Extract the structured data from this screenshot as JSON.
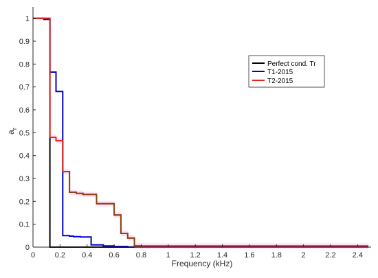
{
  "chart_data": {
    "type": "line",
    "title": "",
    "xlabel": "Frequency (kHz)",
    "ylabel_main": "a",
    "ylabel_sub": "r",
    "xlim": [
      0,
      2.5
    ],
    "ylim": [
      0,
      1.05
    ],
    "x_ticks": [
      "0",
      "0.2",
      "0.4",
      "0.6",
      "0.8",
      "1",
      "1.2",
      "1.4",
      "1.6",
      "1.8",
      "2",
      "2.2",
      "2.4"
    ],
    "x_tick_values": [
      0,
      0.2,
      0.4,
      0.6,
      0.8,
      1.0,
      1.2,
      1.4,
      1.6,
      1.8,
      2.0,
      2.2,
      2.4
    ],
    "y_ticks": [
      "0",
      "0.1",
      "0.2",
      "0.3",
      "0.4",
      "0.5",
      "0.6",
      "0.7",
      "0.8",
      "0.9",
      "1"
    ],
    "y_tick_values": [
      0,
      0.1,
      0.2,
      0.3,
      0.4,
      0.5,
      0.6,
      0.7,
      0.8,
      0.9,
      1.0
    ],
    "grid": false,
    "legend_position": "top-right",
    "series": [
      {
        "name": "Perfect cond. Tr",
        "color": "#000000",
        "x": [
          0,
          0.125,
          0.125,
          0.75
        ],
        "y": [
          1.0,
          1.0,
          0.0,
          0.0
        ]
      },
      {
        "name": "T1-2015",
        "color": "#0000cc",
        "x": [
          0,
          0.08,
          0.08,
          0.125,
          0.125,
          0.17,
          0.17,
          0.22,
          0.22,
          0.27,
          0.27,
          0.3,
          0.3,
          0.35,
          0.35,
          0.43,
          0.43,
          0.52,
          0.52,
          0.6,
          0.6,
          0.7,
          0.7,
          2.48
        ],
        "y": [
          1.0,
          1.0,
          0.995,
          0.995,
          0.765,
          0.765,
          0.68,
          0.68,
          0.05,
          0.05,
          0.048,
          0.048,
          0.046,
          0.046,
          0.044,
          0.044,
          0.01,
          0.01,
          0.005,
          0.005,
          0.003,
          0.003,
          0.001,
          0.001
        ]
      },
      {
        "name": "T2-2015",
        "color": "#e8241c",
        "x": [
          0,
          0.125,
          0.125,
          0.17,
          0.17,
          0.22,
          0.22,
          0.27,
          0.27,
          0.32,
          0.32,
          0.37,
          0.37,
          0.47,
          0.47,
          0.57,
          0.57,
          0.6,
          0.6,
          0.65,
          0.65,
          0.7,
          0.7,
          0.75,
          0.75,
          2.48
        ],
        "y": [
          1.0,
          1.0,
          0.48,
          0.48,
          0.465,
          0.465,
          0.33,
          0.33,
          0.24,
          0.24,
          0.235,
          0.235,
          0.23,
          0.23,
          0.19,
          0.19,
          0.19,
          0.19,
          0.14,
          0.14,
          0.06,
          0.06,
          0.04,
          0.04,
          0.005,
          0.005
        ]
      }
    ],
    "overlay": {
      "color": "#8b4513",
      "x": [
        0.22,
        0.27,
        0.27,
        0.32,
        0.32,
        0.37,
        0.37,
        0.47,
        0.47,
        0.57,
        0.57,
        0.6,
        0.6,
        0.65,
        0.65,
        0.7,
        0.7,
        0.75,
        0.75,
        0.8
      ],
      "y": [
        0.33,
        0.33,
        0.24,
        0.24,
        0.235,
        0.235,
        0.23,
        0.23,
        0.19,
        0.19,
        0.19,
        0.19,
        0.14,
        0.14,
        0.06,
        0.06,
        0.04,
        0.04,
        0.005,
        0.005
      ]
    },
    "band_color": "#ffd6f5"
  }
}
